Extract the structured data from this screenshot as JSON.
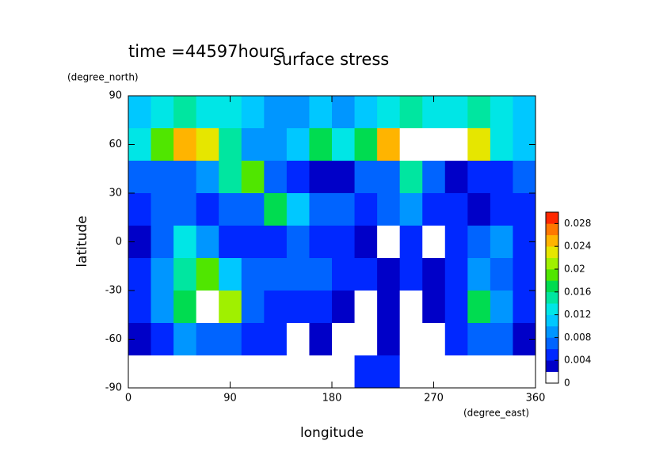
{
  "chart_data": {
    "type": "heatmap",
    "title": "surface stress",
    "annotation": "time =44597hours",
    "x_label": "longitude",
    "y_label": "latitude",
    "x_unit": "(degree_east)",
    "y_unit": "(degree_north)",
    "xlim": [
      0,
      360
    ],
    "xticks": [
      0,
      90,
      180,
      270,
      360
    ],
    "ylim": [
      -90,
      90
    ],
    "yticks": [
      90,
      60,
      30,
      0,
      -30,
      -60,
      -90
    ],
    "x": [
      10,
      30,
      50,
      70,
      90,
      110,
      130,
      150,
      170,
      190,
      210,
      230,
      250,
      270,
      290,
      310,
      330,
      350
    ],
    "y": [
      80,
      60,
      40,
      20,
      0,
      -20,
      -40,
      -60,
      -80
    ],
    "values": [
      [
        0.01,
        0.012,
        0.014,
        0.012,
        0.012,
        0.01,
        0.008,
        0.008,
        0.01,
        0.008,
        0.01,
        0.012,
        0.014,
        0.012,
        0.012,
        0.014,
        0.012,
        0.01
      ],
      [
        0.012,
        0.018,
        0.024,
        0.022,
        0.014,
        0.008,
        0.008,
        0.01,
        0.016,
        0.012,
        0.016,
        0.024,
        0.032,
        0.032,
        0.03,
        0.022,
        0.012,
        0.01
      ],
      [
        0.006,
        0.006,
        0.006,
        0.008,
        0.014,
        0.018,
        0.006,
        0.004,
        0.002,
        0.002,
        0.006,
        0.006,
        0.014,
        0.006,
        0.002,
        0.004,
        0.004,
        0.006
      ],
      [
        0.004,
        0.006,
        0.006,
        0.004,
        0.006,
        0.006,
        0.016,
        0.01,
        0.006,
        0.006,
        0.004,
        0.006,
        0.008,
        0.004,
        0.004,
        0.002,
        0.004,
        0.004
      ],
      [
        0.002,
        0.006,
        0.012,
        0.008,
        0.004,
        0.004,
        0.004,
        0.006,
        0.004,
        0.004,
        0.002,
        0,
        0.004,
        0,
        0.004,
        0.006,
        0.008,
        0.004
      ],
      [
        0.004,
        0.008,
        0.014,
        0.018,
        0.01,
        0.006,
        0.006,
        0.006,
        0.006,
        0.004,
        0.004,
        0.002,
        0.004,
        0.002,
        0.004,
        0.008,
        0.006,
        0.004
      ],
      [
        0.004,
        0.008,
        0.016,
        0.03,
        0.02,
        0.006,
        0.004,
        0.004,
        0.004,
        0.002,
        0,
        0.002,
        0,
        0.002,
        0.004,
        0.016,
        0.008,
        0.004
      ],
      [
        0.002,
        0.004,
        0.008,
        0.006,
        0.006,
        0.004,
        0.004,
        0,
        0.002,
        0,
        0,
        0.002,
        0,
        0,
        0.004,
        0.006,
        0.006,
        0.002
      ],
      [
        0,
        0,
        0,
        0,
        0,
        0,
        0,
        0,
        0,
        0,
        0.004,
        0.004,
        0,
        0,
        0,
        0,
        0,
        0
      ]
    ],
    "clim": [
      0,
      0.03
    ],
    "cticks": [
      0,
      0.004,
      0.008,
      0.012,
      0.016,
      0.02,
      0.024,
      0.028
    ],
    "colors": [
      "#ffffff",
      "#0000c8",
      "#0028ff",
      "#0064ff",
      "#0096ff",
      "#00c8ff",
      "#00e6e6",
      "#00e6a0",
      "#00dc50",
      "#50e600",
      "#a0f000",
      "#e6e600",
      "#ffb400",
      "#ff7800",
      "#ff2800"
    ],
    "over_color": "#ffffff"
  }
}
